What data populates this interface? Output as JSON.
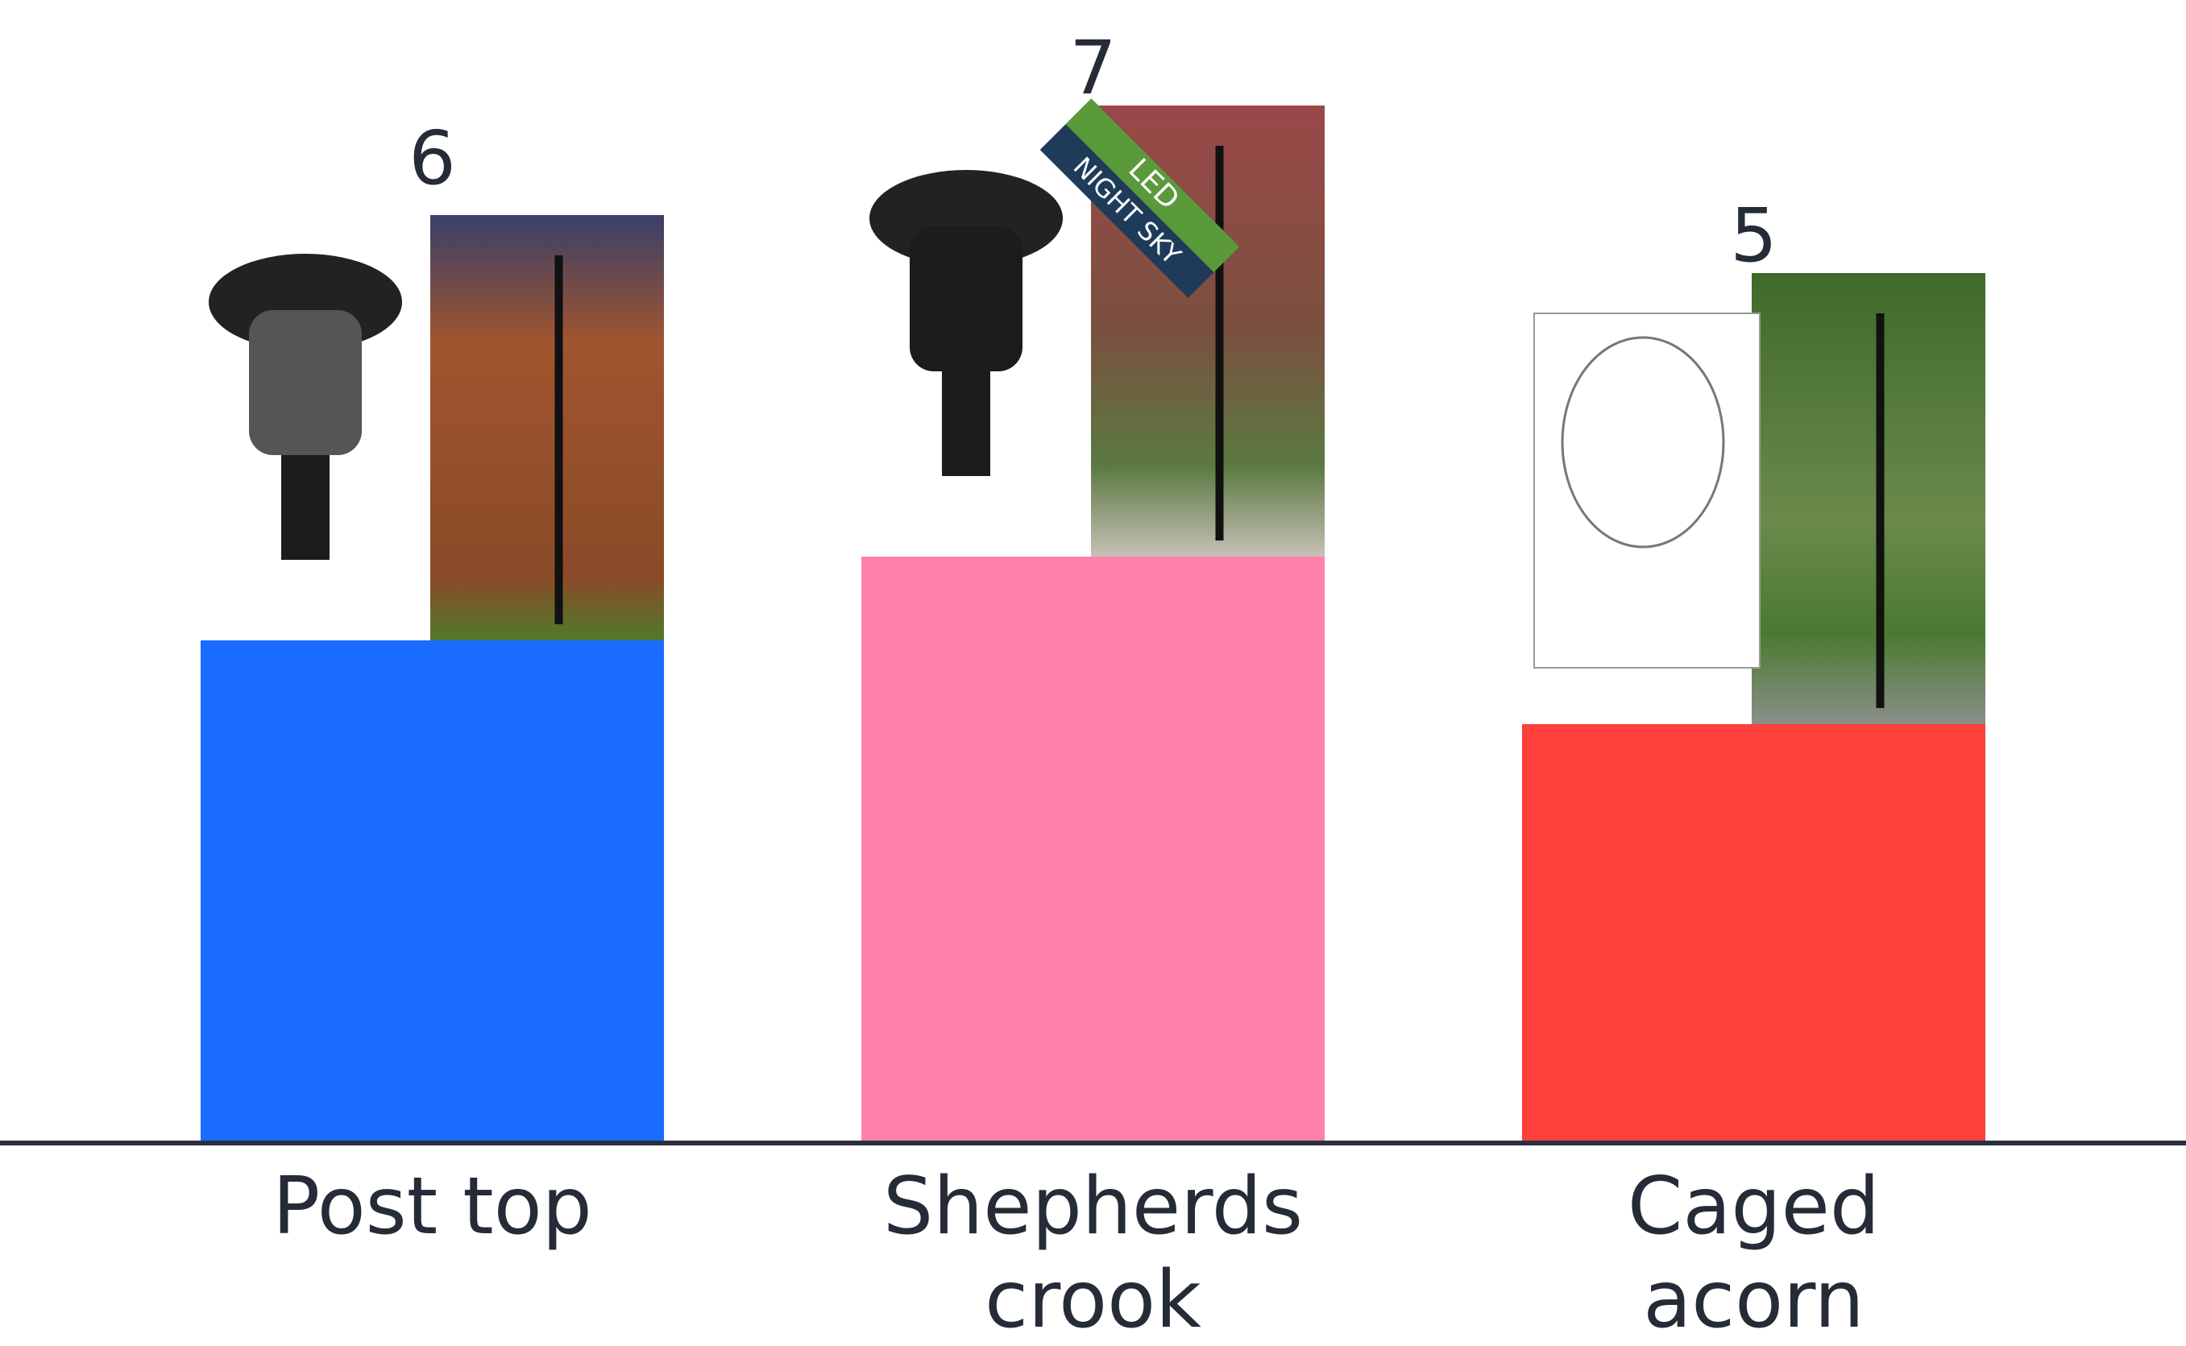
{
  "chart_data": {
    "type": "bar",
    "categories": [
      "Post top",
      "Shepherds crook",
      "Caged acorn"
    ],
    "values": [
      6,
      7,
      5
    ],
    "colors": [
      "#1a6bff",
      "#ff80aa",
      "#ff3f3a"
    ],
    "badge": [
      "LED",
      "NIGHT SKY"
    ]
  }
}
